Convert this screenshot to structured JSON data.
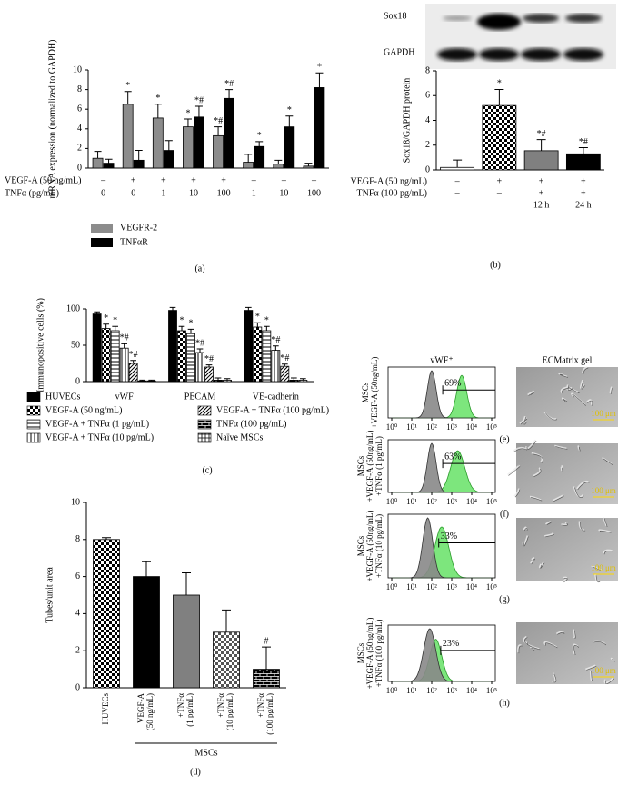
{
  "chart_data": [
    {
      "type": "bar",
      "panel": "(a)",
      "ylabel": "mRNA expression (normalized to GAPDH)",
      "ylim": [
        0,
        10
      ],
      "yticks": [
        0,
        2,
        4,
        6,
        8,
        10
      ],
      "condition_labels": [
        "VEGF-A (50 ng/mL)",
        "TNFα (pg/mL)"
      ],
      "conditions": [
        [
          "–",
          "+",
          "+",
          "+",
          "+",
          "–",
          "–",
          "–"
        ],
        [
          "0",
          "0",
          "1",
          "10",
          "100",
          "1",
          "10",
          "100"
        ]
      ],
      "series": [
        {
          "name": "VEGFR-2",
          "color": "#8c8c8c",
          "values": [
            1.0,
            6.5,
            5.1,
            4.2,
            3.3,
            0.6,
            0.4,
            0.2
          ],
          "errors": [
            0.7,
            1.3,
            1.4,
            0.8,
            0.9,
            0.8,
            0.4,
            0.3
          ],
          "annotations": [
            null,
            "*",
            "*",
            "*",
            "*#",
            null,
            null,
            null
          ]
        },
        {
          "name": "TNFαR",
          "color": "#000000",
          "values": [
            0.5,
            0.8,
            1.8,
            5.2,
            7.1,
            2.2,
            4.2,
            8.2
          ],
          "errors": [
            0.4,
            1.0,
            1.0,
            1.1,
            0.9,
            0.5,
            1.1,
            1.5
          ],
          "annotations": [
            null,
            null,
            null,
            "*#",
            "*#",
            "*",
            "*",
            "*"
          ]
        }
      ]
    },
    {
      "type": "bar",
      "panel": "(b)",
      "blot_labels": [
        "Sox18",
        "GAPDH"
      ],
      "ylabel": "Sox18/GAPDH protein",
      "ylim": [
        0,
        8
      ],
      "yticks": [
        0,
        2,
        4,
        6,
        8
      ],
      "condition_labels": [
        "VEGF-A (50 ng/mL)",
        "TNFα (100 pg/mL)"
      ],
      "conditions": [
        [
          "–",
          "+",
          "+",
          "+"
        ],
        [
          "–",
          "–",
          "+",
          "+"
        ],
        [
          null,
          null,
          "12 h",
          "24 h"
        ]
      ],
      "values": [
        0.2,
        5.2,
        1.55,
        1.3
      ],
      "errors": [
        0.6,
        1.3,
        0.9,
        0.5
      ],
      "annotations": [
        null,
        "*",
        "*#",
        "*#"
      ],
      "fills": [
        "#ffffff",
        "checker",
        "#808080",
        "#000000"
      ]
    },
    {
      "type": "bar",
      "panel": "(c)",
      "ylabel": "Immunopositive cells (%)",
      "ylim": [
        0,
        100
      ],
      "yticks": [
        0,
        50,
        100
      ],
      "categories": [
        "vWF",
        "PECAM",
        "VE-cadherin"
      ],
      "series": [
        {
          "name": "HUVECs",
          "color": "#000000",
          "values": [
            93,
            98,
            98
          ],
          "errors": [
            3,
            4,
            4
          ],
          "annotations": [
            null,
            null,
            null
          ]
        },
        {
          "name": "VEGF-A (50 ng/mL)",
          "color": "checker",
          "values": [
            73,
            70,
            75
          ],
          "errors": [
            6,
            6,
            6
          ],
          "annotations": [
            "*",
            "*",
            "*"
          ]
        },
        {
          "name": "VEGF-A + TNFα (1 pg/mL)",
          "color": "hlines",
          "values": [
            70,
            66,
            70
          ],
          "errors": [
            6,
            6,
            6
          ],
          "annotations": [
            "*",
            "*",
            "*"
          ]
        },
        {
          "name": "VEGF-A + TNFα (10 pg/mL)",
          "color": "vlines",
          "values": [
            46,
            40,
            43
          ],
          "errors": [
            6,
            5,
            6
          ],
          "annotations": [
            "*#",
            "*#",
            "*#"
          ]
        },
        {
          "name": "VEGF-A + TNFα (100 pg/mL)",
          "color": "diag",
          "values": [
            25,
            20,
            21
          ],
          "errors": [
            4,
            3,
            3
          ],
          "annotations": [
            "*#",
            "*#",
            "*#"
          ]
        },
        {
          "name": "TNFα (100 pg/mL)",
          "color": "brick",
          "values": [
            1,
            2,
            2
          ],
          "errors": [
            1,
            3,
            3
          ],
          "annotations": [
            null,
            null,
            null
          ]
        },
        {
          "name": "Naïve MSCs",
          "color": "grid",
          "values": [
            1,
            2,
            2
          ],
          "errors": [
            1,
            2,
            2
          ],
          "annotations": [
            null,
            null,
            null
          ]
        }
      ]
    },
    {
      "type": "bar",
      "panel": "(d)",
      "ylabel": "Tubes/unit area",
      "ylim": [
        0,
        10
      ],
      "yticks": [
        0,
        2,
        4,
        6,
        8,
        10
      ],
      "categories": [
        [
          "HUVECs"
        ],
        [
          "VEGF-A",
          "(50 ng/mL)"
        ],
        [
          "+TNFα",
          "(1 pg/mL)"
        ],
        [
          "+TNFα",
          "(10 pg/mL)"
        ],
        [
          "+TNFα",
          "(100 pg/mL)"
        ]
      ],
      "group_label": "MSCs",
      "values": [
        8,
        6,
        5,
        3,
        1
      ],
      "errors": [
        0.1,
        0.8,
        1.2,
        1.2,
        1.2
      ],
      "annotations": [
        null,
        null,
        null,
        null,
        "#"
      ],
      "fills": [
        "checker",
        "#000000",
        "#808080",
        "checkergray",
        "brick"
      ]
    }
  ],
  "flow": {
    "title": "vWF⁺",
    "xticks": [
      "10⁰",
      "10¹",
      "10²",
      "10³",
      "10⁴",
      "10⁵"
    ],
    "panels": [
      {
        "letter": "(e)",
        "ylabel": [
          "MSCs",
          "+VEGF-A (50ng/mL)"
        ],
        "percent": "69%"
      },
      {
        "letter": "(f)",
        "ylabel": [
          "MSCs",
          "+VEGF-A (50ng/mL)",
          "+TNFα (1 pg/mL)"
        ],
        "percent": "63%"
      },
      {
        "letter": "(g)",
        "ylabel": [
          "MSCs",
          "+VEGF-A (50ng/mL)",
          "+TNFα (10 pg/mL)"
        ],
        "percent": "33%"
      },
      {
        "letter": "(h)",
        "ylabel": [
          "MSCs",
          "+VEGF-A (50ng/mL)",
          "+TNFα (100 pg/mL)"
        ],
        "percent": "23%"
      }
    ]
  },
  "micrographs": {
    "title": "ECMatrix gel",
    "scale_label": "100 μm"
  }
}
